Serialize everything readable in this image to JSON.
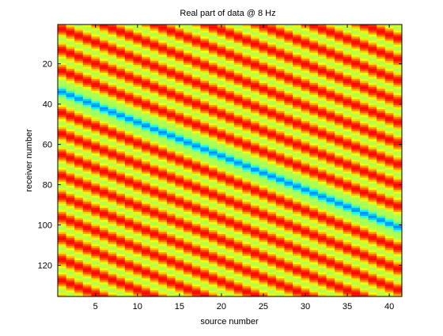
{
  "chart_data": {
    "type": "heatmap",
    "title": "Real part of data @ 8 Hz",
    "xlabel": "source number",
    "ylabel": "receiver number",
    "x_range": [
      1,
      41
    ],
    "y_range": [
      1,
      135
    ],
    "y_axis_direction": "reversed",
    "x_ticks": [
      5,
      10,
      15,
      20,
      25,
      30,
      35,
      40
    ],
    "y_ticks": [
      20,
      40,
      60,
      80,
      100,
      120
    ],
    "x_tick_labels": [
      "5",
      "10",
      "15",
      "20",
      "25",
      "30",
      "35",
      "40"
    ],
    "y_tick_labels": [
      "20",
      "40",
      "60",
      "80",
      "100",
      "120"
    ],
    "colormap": "jet (lower part dominated by dark red to yellow)",
    "background_color": "#ff8c00",
    "grid": false,
    "legend": "none",
    "pattern": {
      "description": "diagonal oscillating stripes parallel to the main anti-diagonal; strongest (blue / dark red) ridge along the diagonal where receiver ≈ source",
      "diagonal_ridge": [
        {
          "source": 1,
          "receiver": 34
        },
        {
          "source": 41,
          "receiver": 101
        }
      ],
      "stripe_slope_receivers_per_source": 1.67,
      "stripe_period_receivers": 10.4
    }
  }
}
